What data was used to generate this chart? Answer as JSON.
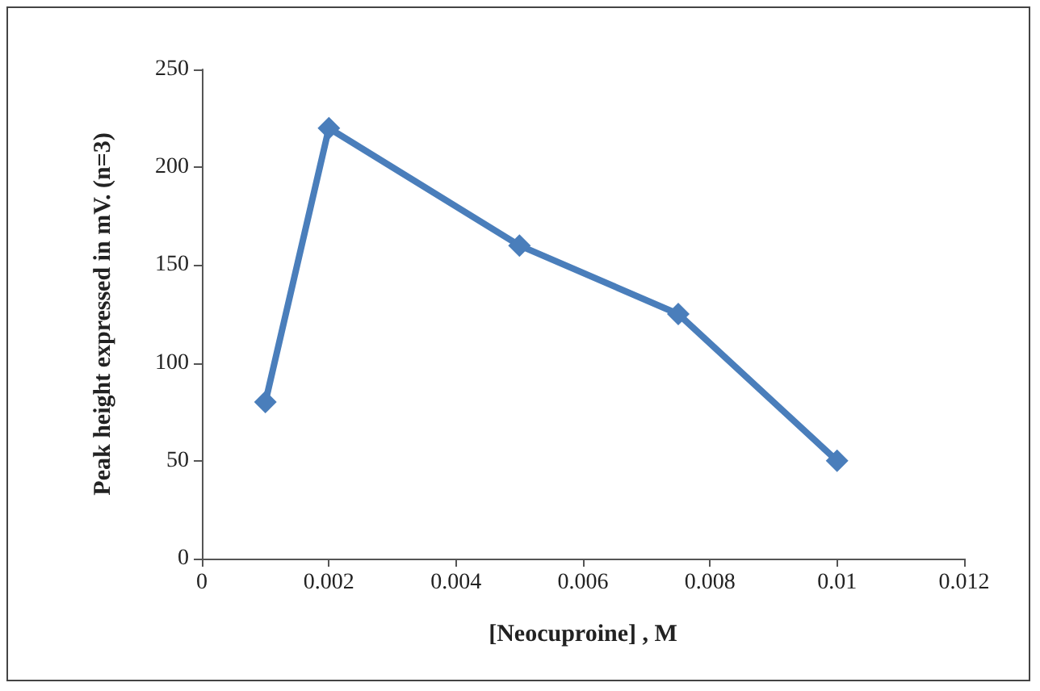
{
  "chart_data": {
    "type": "line",
    "xlabel": "[Neocuproine] , M",
    "ylabel": "Peak height expressed in mV. (n=3)",
    "x": [
      0.001,
      0.002,
      0.005,
      0.0075,
      0.01
    ],
    "series": [
      {
        "color": "#4a7ebb",
        "values": [
          80,
          220,
          160,
          125,
          50
        ]
      }
    ],
    "xlim": [
      0,
      0.012
    ],
    "xticks": [
      0,
      0.002,
      0.004,
      0.006,
      0.008,
      0.01,
      0.012
    ],
    "ylim": [
      0,
      250
    ],
    "yticks": [
      0,
      50,
      100,
      150,
      200,
      250
    ],
    "grid": false,
    "marker": "diamond",
    "line_style": "solid"
  }
}
